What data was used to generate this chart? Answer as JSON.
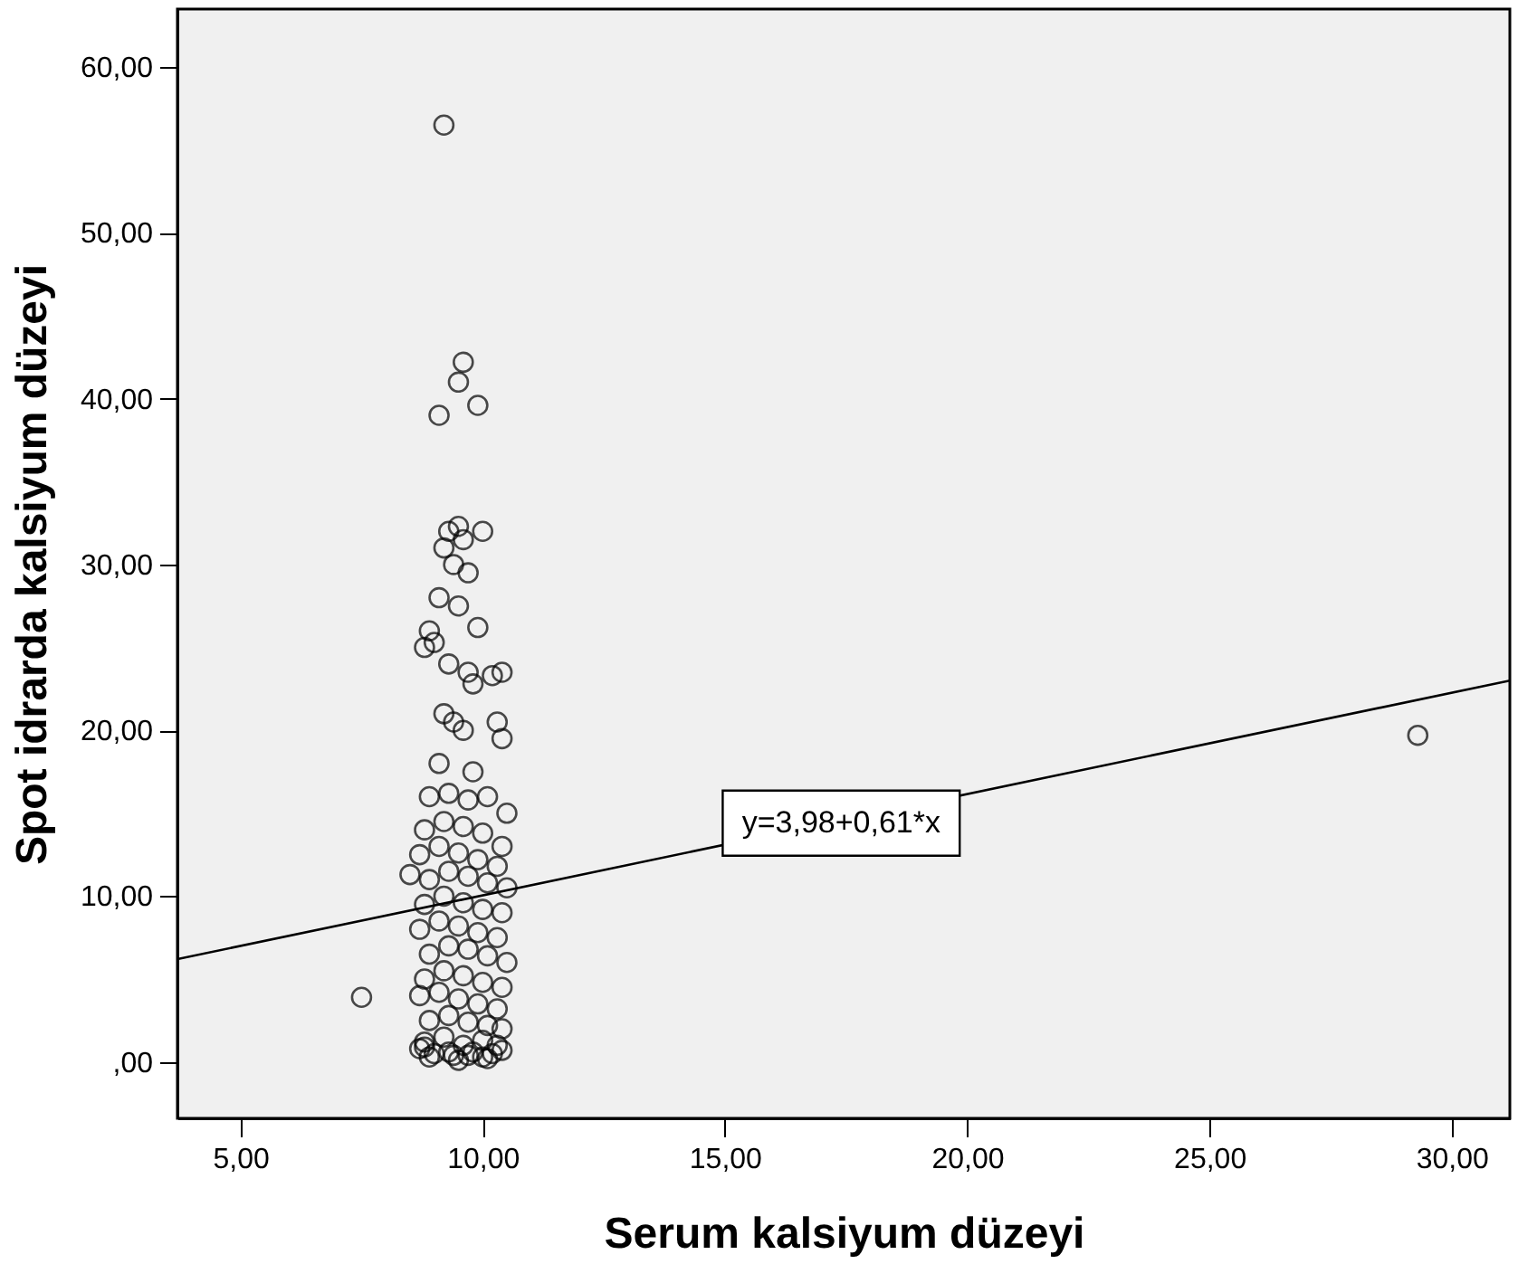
{
  "chart_data": {
    "type": "scatter",
    "xlabel": "Serum kalsiyum düzeyi",
    "ylabel": "Spot idrarda kalsiyum düzeyi",
    "xlim": [
      3.7,
      31.2
    ],
    "ylim": [
      -3.4,
      63.5
    ],
    "xticks": [
      {
        "value": 5,
        "label": "5,00"
      },
      {
        "value": 10,
        "label": "10,00"
      },
      {
        "value": 15,
        "label": "15,00"
      },
      {
        "value": 20,
        "label": "20,00"
      },
      {
        "value": 25,
        "label": "25,00"
      },
      {
        "value": 30,
        "label": "30,00"
      }
    ],
    "yticks": [
      {
        "value": 0,
        "label": ",00"
      },
      {
        "value": 10,
        "label": "10,00"
      },
      {
        "value": 20,
        "label": "20,00"
      },
      {
        "value": 30,
        "label": "30,00"
      },
      {
        "value": 40,
        "label": "40,00"
      },
      {
        "value": 50,
        "label": "50,00"
      },
      {
        "value": 60,
        "label": "60,00"
      }
    ],
    "grid": false,
    "series": [
      {
        "color": "#000000",
        "marker": "circle",
        "x": [
          9.2,
          9.6,
          9.5,
          9.1,
          9.9,
          7.5,
          8.5,
          29.3,
          9.3,
          9.5,
          10.0,
          9.6,
          9.2,
          9.4,
          9.7,
          9.1,
          9.5,
          9.9,
          8.9,
          9.0,
          8.8,
          9.3,
          9.7,
          10.2,
          10.4,
          9.8,
          9.2,
          9.4,
          10.4,
          10.3,
          9.6,
          9.1,
          9.8,
          8.9,
          9.3,
          9.7,
          10.1,
          10.5,
          8.8,
          9.2,
          9.6,
          10.0,
          10.4,
          8.7,
          9.1,
          9.5,
          9.9,
          10.3,
          8.9,
          9.3,
          9.7,
          10.1,
          10.5,
          8.8,
          9.2,
          9.6,
          10.0,
          10.4,
          8.7,
          9.1,
          9.5,
          9.9,
          10.3,
          8.9,
          9.3,
          9.7,
          10.1,
          10.5,
          8.8,
          9.2,
          9.6,
          10.0,
          10.4,
          8.7,
          9.1,
          9.5,
          9.9,
          10.3,
          8.9,
          9.3,
          9.7,
          10.1,
          10.4,
          8.8,
          9.2,
          9.6,
          10.0,
          10.3,
          8.7,
          9.0,
          9.4,
          9.8,
          10.2,
          8.9,
          9.3,
          9.7,
          10.1,
          10.4,
          8.8,
          9.5,
          10.0
        ],
        "values": [
          56.5,
          42.2,
          41.0,
          39.0,
          39.6,
          3.9,
          11.3,
          19.7,
          32.0,
          32.3,
          32.0,
          31.5,
          31.0,
          30.0,
          29.5,
          28.0,
          27.5,
          26.2,
          26.0,
          25.3,
          25.0,
          24.0,
          23.5,
          23.3,
          23.5,
          22.8,
          21.0,
          20.5,
          19.5,
          20.5,
          20.0,
          18.0,
          17.5,
          16.0,
          16.2,
          15.8,
          16.0,
          15.0,
          14.0,
          14.5,
          14.2,
          13.8,
          13.0,
          12.5,
          13.0,
          12.6,
          12.2,
          11.8,
          11.0,
          11.5,
          11.2,
          10.8,
          10.5,
          9.5,
          10.0,
          9.6,
          9.2,
          9.0,
          8.0,
          8.5,
          8.2,
          7.8,
          7.5,
          6.5,
          7.0,
          6.8,
          6.4,
          6.0,
          5.0,
          5.5,
          5.2,
          4.8,
          4.5,
          4.0,
          4.2,
          3.8,
          3.5,
          3.2,
          2.5,
          2.8,
          2.4,
          2.2,
          2.0,
          1.2,
          1.5,
          1.0,
          1.3,
          1.0,
          0.8,
          0.5,
          0.4,
          0.6,
          0.5,
          0.3,
          0.6,
          0.4,
          0.2,
          0.7,
          0.9,
          0.1,
          0.3
        ]
      },
      {
        "type": "line",
        "color": "#000000",
        "marker": "none",
        "x": [
          3.7,
          31.2
        ],
        "values": [
          6.2,
          23.0
        ]
      }
    ],
    "annotations": [
      {
        "text": "y=3,98+0,61*x",
        "x": 17.4,
        "y": 14.4
      }
    ]
  }
}
